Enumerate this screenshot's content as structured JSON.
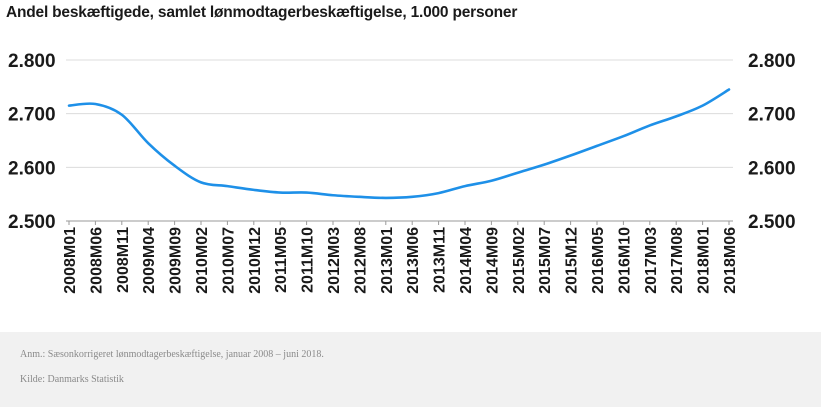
{
  "chart_data": {
    "type": "line",
    "title": "Andel beskæftigede, samlet lønmodtagerbeskæftigelse, 1.000 personer",
    "xlabel": "",
    "ylabel": "",
    "ylim": [
      2500,
      2800
    ],
    "y_ticks": [
      2500,
      2600,
      2700,
      2800
    ],
    "y_tick_labels": [
      "2.500",
      "2.600",
      "2.700",
      "2.800"
    ],
    "x_tick_labels": [
      "2008M01",
      "2008M06",
      "2008M11",
      "2009M04",
      "2009M09",
      "2010M02",
      "2010M07",
      "2010M12",
      "2011M05",
      "2011M10",
      "2012M03",
      "2012M08",
      "2013M01",
      "2013M06",
      "2013M11",
      "2014M04",
      "2014M09",
      "2015M02",
      "2015M07",
      "2015M12",
      "2016M05",
      "2016M10",
      "2017M03",
      "2017M08",
      "2018M01",
      "2018M06"
    ],
    "grid": "horizontal",
    "legend": "none",
    "line_color": "#1e90e8",
    "x": [
      "2008M01",
      "2008M06",
      "2008M11",
      "2009M04",
      "2009M09",
      "2010M02",
      "2010M07",
      "2010M12",
      "2011M05",
      "2011M10",
      "2012M03",
      "2012M08",
      "2013M01",
      "2013M06",
      "2013M11",
      "2014M04",
      "2014M09",
      "2015M02",
      "2015M07",
      "2015M12",
      "2016M05",
      "2016M10",
      "2017M03",
      "2017M08",
      "2018M01",
      "2018M06"
    ],
    "series": [
      {
        "values": [
          2715,
          2718,
          2698,
          2645,
          2603,
          2572,
          2565,
          2558,
          2553,
          2553,
          2548,
          2545,
          2543,
          2545,
          2552,
          2565,
          2575,
          2590,
          2605,
          2622,
          2640,
          2658,
          2678,
          2695,
          2715,
          2745
        ]
      }
    ]
  },
  "note": "Anm.: Sæsonkorrigeret lønmodtagerbeskæftigelse, januar 2008 – juni 2018.",
  "source": "Kilde: Danmarks Statistik"
}
